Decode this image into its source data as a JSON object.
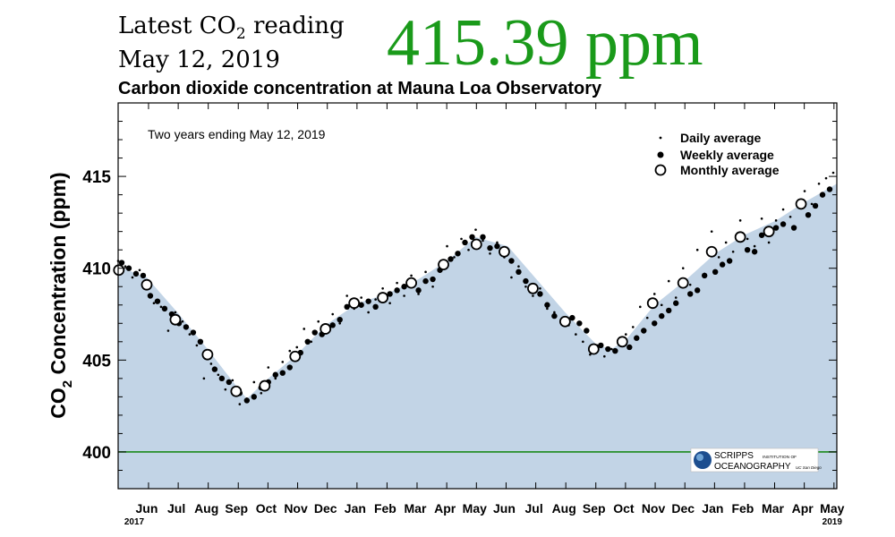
{
  "header": {
    "latest_label_pre": "Latest CO",
    "latest_label_sub": "2",
    "latest_label_post": " reading",
    "date": "May 12, 2019",
    "value": "415.39 ppm",
    "value_color": "#1a9a1a"
  },
  "chart_data": {
    "type": "scatter",
    "title": "Carbon dioxide concentration at Mauna Loa Observatory",
    "subtitle": "Two years ending May 12, 2019",
    "ylabel_pre": "CO",
    "ylabel_sub": "2",
    "ylabel_post": " Concentration (ppm)",
    "ylim": [
      398,
      419
    ],
    "yticks": [
      400,
      405,
      410,
      415
    ],
    "xlim": [
      2017.36,
      2019.37
    ],
    "xticks": [
      {
        "label": "Jun",
        "x": 2017.445
      },
      {
        "label": "Jul",
        "x": 2017.528
      },
      {
        "label": "Aug",
        "x": 2017.612
      },
      {
        "label": "Sep",
        "x": 2017.696
      },
      {
        "label": "Oct",
        "x": 2017.779
      },
      {
        "label": "Nov",
        "x": 2017.862
      },
      {
        "label": "Dec",
        "x": 2017.945
      },
      {
        "label": "Jan",
        "x": 2018.028
      },
      {
        "label": "Feb",
        "x": 2018.112
      },
      {
        "label": "Mar",
        "x": 2018.196
      },
      {
        "label": "Apr",
        "x": 2018.279
      },
      {
        "label": "May",
        "x": 2018.362
      },
      {
        "label": "Jun",
        "x": 2018.445
      },
      {
        "label": "Jul",
        "x": 2018.528
      },
      {
        "label": "Aug",
        "x": 2018.612
      },
      {
        "label": "Sep",
        "x": 2018.696
      },
      {
        "label": "Oct",
        "x": 2018.779
      },
      {
        "label": "Nov",
        "x": 2018.862
      },
      {
        "label": "Dec",
        "x": 2018.945
      },
      {
        "label": "Jan",
        "x": 2019.028
      },
      {
        "label": "Feb",
        "x": 2019.112
      },
      {
        "label": "Mar",
        "x": 2019.196
      },
      {
        "label": "Apr",
        "x": 2019.279
      },
      {
        "label": "May",
        "x": 2019.362
      }
    ],
    "year_labels": [
      {
        "label": "2017",
        "x": 2017.41
      },
      {
        "label": "2019",
        "x": 2019.362
      }
    ],
    "reference_line": 400,
    "reference_color": "#1a8a1a",
    "fill_color": "#c2d4e6",
    "legend": [
      "Daily average",
      "Weekly average",
      "Monthly average"
    ],
    "legend_position": "top-right",
    "grid": false,
    "series": [
      {
        "name": "Monthly average",
        "x": [
          2017.362,
          2017.44,
          2017.52,
          2017.61,
          2017.69,
          2017.77,
          2017.855,
          2017.94,
          2018.02,
          2018.1,
          2018.18,
          2018.27,
          2018.362,
          2018.44,
          2018.52,
          2018.61,
          2018.69,
          2018.77,
          2018.855,
          2018.94,
          2019.02,
          2019.1,
          2019.18,
          2019.27
        ],
        "y": [
          409.9,
          409.1,
          407.2,
          405.3,
          403.3,
          403.6,
          405.2,
          406.7,
          408.1,
          408.4,
          409.2,
          410.2,
          411.3,
          410.9,
          408.9,
          407.1,
          405.6,
          406.0,
          408.1,
          409.2,
          410.9,
          411.7,
          412.0,
          413.5
        ]
      },
      {
        "name": "Weekly average",
        "x": [
          2017.37,
          2017.39,
          2017.41,
          2017.43,
          2017.45,
          2017.47,
          2017.49,
          2017.51,
          2017.53,
          2017.55,
          2017.57,
          2017.59,
          2017.63,
          2017.65,
          2017.67,
          2017.7,
          2017.72,
          2017.74,
          2017.76,
          2017.78,
          2017.8,
          2017.82,
          2017.84,
          2017.87,
          2017.89,
          2017.91,
          2017.93,
          2017.96,
          2017.98,
          2018.0,
          2018.04,
          2018.06,
          2018.08,
          2018.12,
          2018.14,
          2018.16,
          2018.2,
          2018.22,
          2018.24,
          2018.26,
          2018.29,
          2018.31,
          2018.33,
          2018.35,
          2018.38,
          2018.4,
          2018.42,
          2018.46,
          2018.48,
          2018.5,
          2018.54,
          2018.56,
          2018.58,
          2018.63,
          2018.65,
          2018.67,
          2018.71,
          2018.73,
          2018.75,
          2018.79,
          2018.81,
          2018.83,
          2018.86,
          2018.88,
          2018.9,
          2018.92,
          2018.96,
          2018.98,
          2019.0,
          2019.03,
          2019.05,
          2019.07,
          2019.12,
          2019.14,
          2019.16,
          2019.2,
          2019.22,
          2019.25,
          2019.29,
          2019.31,
          2019.33,
          2019.35
        ],
        "y": [
          410.3,
          410.0,
          409.7,
          409.6,
          408.5,
          408.2,
          407.8,
          407.5,
          407.0,
          406.8,
          406.5,
          406.0,
          404.5,
          404.0,
          403.8,
          403.2,
          402.8,
          403.0,
          403.5,
          403.8,
          404.2,
          404.3,
          404.6,
          405.4,
          406.0,
          406.5,
          406.4,
          406.9,
          407.2,
          407.9,
          408.0,
          408.2,
          407.9,
          408.6,
          408.8,
          409.0,
          408.8,
          409.3,
          409.4,
          409.9,
          410.5,
          410.8,
          411.4,
          411.7,
          411.7,
          411.1,
          411.2,
          410.4,
          409.8,
          409.3,
          408.6,
          408.0,
          407.4,
          407.3,
          407.0,
          406.6,
          405.8,
          405.6,
          405.5,
          405.7,
          406.2,
          406.6,
          407.0,
          407.4,
          407.7,
          408.1,
          408.6,
          408.8,
          409.6,
          409.8,
          410.2,
          410.4,
          411.0,
          410.9,
          411.8,
          412.2,
          412.4,
          412.2,
          412.9,
          413.4,
          414.0,
          414.3
        ]
      },
      {
        "name": "Daily average",
        "x": [
          2017.36,
          2017.38,
          2017.4,
          2017.42,
          2017.44,
          2017.46,
          2017.48,
          2017.5,
          2017.52,
          2017.54,
          2017.56,
          2017.58,
          2017.6,
          2017.62,
          2017.64,
          2017.66,
          2017.68,
          2017.7,
          2017.72,
          2017.74,
          2017.76,
          2017.78,
          2017.8,
          2017.82,
          2017.84,
          2017.86,
          2017.88,
          2017.9,
          2017.92,
          2017.94,
          2017.96,
          2017.98,
          2018.0,
          2018.02,
          2018.04,
          2018.06,
          2018.08,
          2018.1,
          2018.12,
          2018.14,
          2018.16,
          2018.18,
          2018.2,
          2018.22,
          2018.24,
          2018.26,
          2018.28,
          2018.3,
          2018.32,
          2018.34,
          2018.36,
          2018.38,
          2018.4,
          2018.42,
          2018.44,
          2018.46,
          2018.48,
          2018.5,
          2018.52,
          2018.54,
          2018.56,
          2018.58,
          2018.6,
          2018.62,
          2018.64,
          2018.66,
          2018.68,
          2018.7,
          2018.72,
          2018.74,
          2018.76,
          2018.78,
          2018.8,
          2018.82,
          2018.84,
          2018.86,
          2018.88,
          2018.9,
          2018.92,
          2018.94,
          2018.96,
          2018.98,
          2019.0,
          2019.02,
          2019.04,
          2019.06,
          2019.08,
          2019.1,
          2019.12,
          2019.14,
          2019.16,
          2019.18,
          2019.2,
          2019.22,
          2019.24,
          2019.26,
          2019.28,
          2019.3,
          2019.32,
          2019.34,
          2019.36
        ],
        "y": [
          410.4,
          410.1,
          409.5,
          409.9,
          409.0,
          408.1,
          407.9,
          406.6,
          407.6,
          407.1,
          406.4,
          405.8,
          404.0,
          404.8,
          404.2,
          403.4,
          403.9,
          402.6,
          402.9,
          403.8,
          403.2,
          404.6,
          404.0,
          404.9,
          405.5,
          405.7,
          406.7,
          406.0,
          407.1,
          406.8,
          407.5,
          407.0,
          408.5,
          407.8,
          408.4,
          407.6,
          408.3,
          408.9,
          408.1,
          409.2,
          408.5,
          409.6,
          408.6,
          409.8,
          409.0,
          410.1,
          411.2,
          410.6,
          411.6,
          411.0,
          412.1,
          411.5,
          410.8,
          411.4,
          410.6,
          409.5,
          410.1,
          409.0,
          408.5,
          408.9,
          407.8,
          407.6,
          407.0,
          406.9,
          406.4,
          406.0,
          405.3,
          405.8,
          405.2,
          405.6,
          406.0,
          406.4,
          406.8,
          407.9,
          407.3,
          408.6,
          408.0,
          409.3,
          408.4,
          410.0,
          409.1,
          411.0,
          409.7,
          412.0,
          410.6,
          411.4,
          410.9,
          412.6,
          411.6,
          411.2,
          412.7,
          411.4,
          412.6,
          413.2,
          412.8,
          413.6,
          414.2,
          413.5,
          414.6,
          414.9,
          415.2
        ]
      }
    ],
    "fill_x": [
      2017.36,
      2017.44,
      2017.53,
      2017.61,
      2017.69,
      2017.72,
      2017.78,
      2017.86,
      2017.94,
      2018.03,
      2018.11,
      2018.2,
      2018.28,
      2018.36,
      2018.45,
      2018.53,
      2018.61,
      2018.7,
      2018.74,
      2018.78,
      2018.86,
      2018.95,
      2019.03,
      2019.11,
      2019.2,
      2019.28,
      2019.37
    ],
    "fill_y": [
      410.1,
      409.5,
      407.5,
      405.6,
      403.6,
      402.9,
      404.0,
      405.3,
      406.9,
      408.1,
      408.6,
      409.4,
      410.4,
      411.7,
      411.2,
      409.4,
      407.6,
      405.8,
      405.6,
      406.1,
      408.0,
      409.4,
      410.8,
      411.8,
      412.6,
      413.6,
      414.6
    ]
  },
  "logo": {
    "line1": "SCRIPPS",
    "line1_small": "INSTITUTION OF",
    "line2": "OCEANOGRAPHY",
    "line2_small": "UC San Diego"
  }
}
